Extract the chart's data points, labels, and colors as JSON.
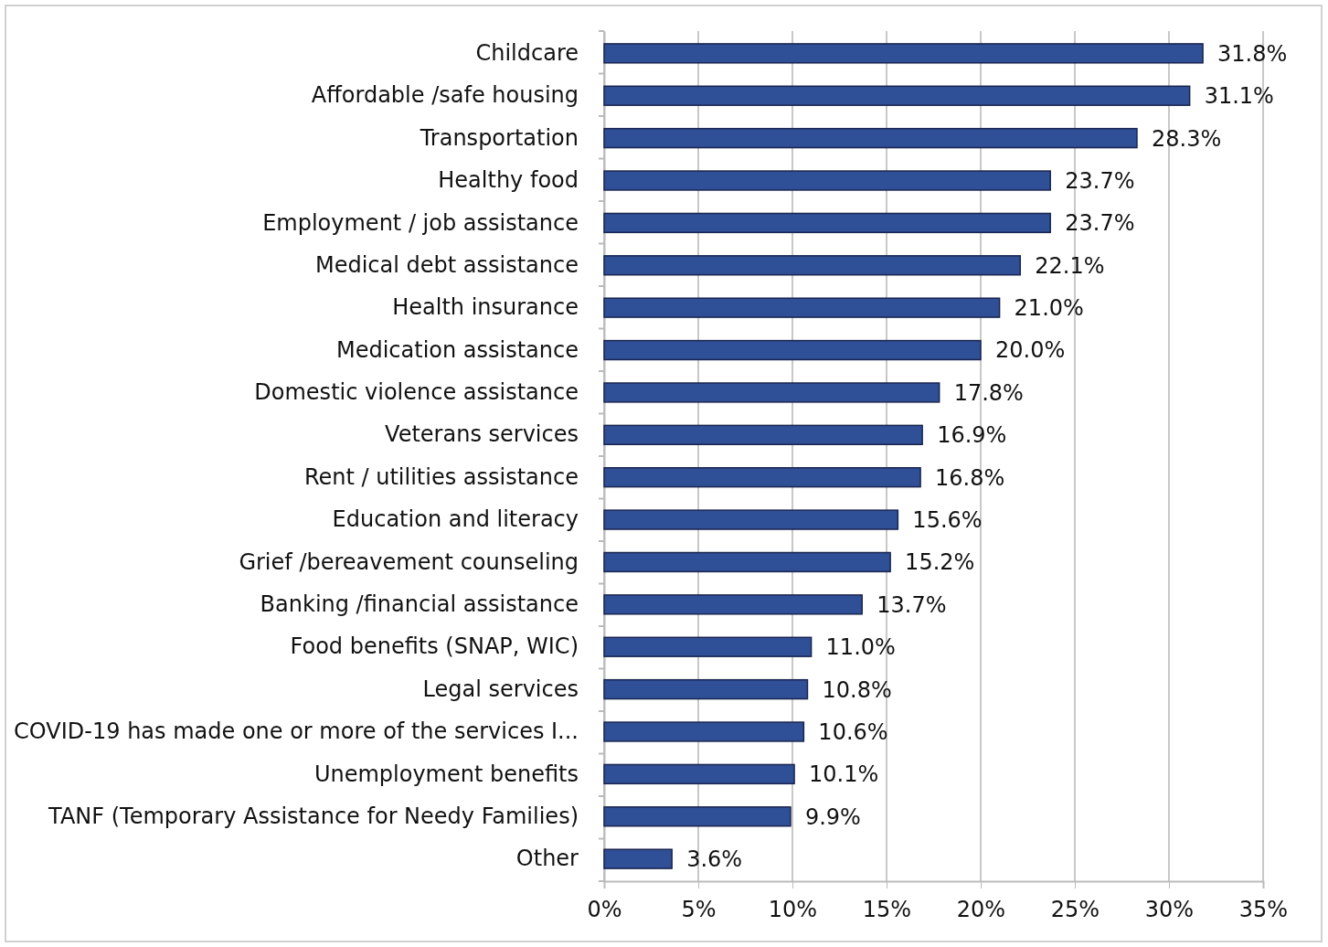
{
  "chart_data": {
    "type": "bar",
    "orientation": "horizontal",
    "categories": [
      "Childcare",
      "Affordable /safe housing",
      "Transportation",
      "Healthy food",
      "Employment / job assistance",
      "Medical debt assistance",
      "Health insurance",
      "Medication assistance",
      "Domestic violence assistance",
      "Veterans services",
      "Rent / utilities assistance",
      "Education and literacy",
      "Grief /bereavement counseling",
      "Banking /financial assistance",
      "Food benefits (SNAP, WIC)",
      "Legal services",
      "COVID-19 has made one or more of the services I...",
      "Unemployment benefits",
      "TANF (Temporary Assistance for Needy Families)",
      "Other"
    ],
    "values": [
      31.8,
      31.1,
      28.3,
      23.7,
      23.7,
      22.1,
      21.0,
      20.0,
      17.8,
      16.9,
      16.8,
      15.6,
      15.2,
      13.7,
      11.0,
      10.8,
      10.6,
      10.1,
      9.9,
      3.6
    ],
    "value_labels": [
      "31.8%",
      "31.1%",
      "28.3%",
      "23.7%",
      "23.7%",
      "22.1%",
      "21.0%",
      "20.0%",
      "17.8%",
      "16.9%",
      "16.8%",
      "15.6%",
      "15.2%",
      "13.7%",
      "11.0%",
      "10.8%",
      "10.6%",
      "10.1%",
      "9.9%",
      "3.6%"
    ],
    "color": "#2f4f96",
    "xlim": [
      0,
      35
    ],
    "xticks": [
      {
        "value": 0,
        "label": "0%"
      },
      {
        "value": 5,
        "label": "5%"
      },
      {
        "value": 10,
        "label": "10%"
      },
      {
        "value": 15,
        "label": "15%"
      },
      {
        "value": 20,
        "label": "20%"
      },
      {
        "value": 25,
        "label": "25%"
      },
      {
        "value": 30,
        "label": "30%"
      },
      {
        "value": 35,
        "label": "35%"
      }
    ],
    "grid": "x"
  }
}
